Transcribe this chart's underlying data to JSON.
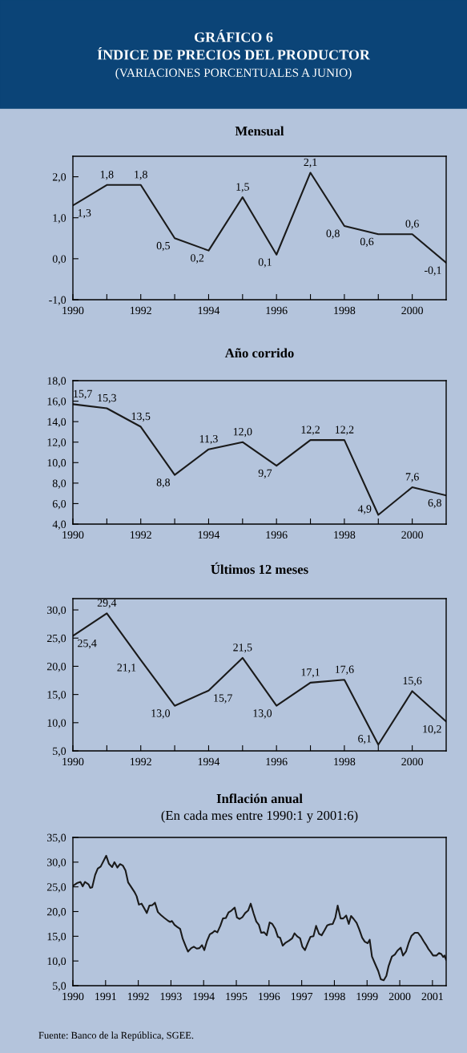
{
  "chart_data": [
    {
      "type": "line",
      "title": "Mensual",
      "annotations": [
        "GRÁFICO 6",
        "ÍNDICE DE PRECIOS DEL PRODUCTOR",
        "(VARIACIONES PORCENTUALES A JUNIO)"
      ],
      "color": "#1a1a1a",
      "x": [
        1990,
        1991,
        1992,
        1993,
        1994,
        1995,
        1996,
        1997,
        1998,
        1999,
        2000,
        2001
      ],
      "values": [
        1.3,
        1.8,
        1.8,
        0.5,
        0.2,
        1.5,
        0.1,
        2.1,
        0.8,
        0.6,
        0.6,
        -0.1
      ],
      "value_labels": [
        "1,3",
        "1,8",
        "1,8",
        "0,5",
        "0,2",
        "1,5",
        "0,1",
        "2,1",
        "0,8",
        "0,6",
        "0,6",
        "-0,1"
      ],
      "xlim": [
        1990,
        2001
      ],
      "ylim": [
        -1,
        2.5
      ],
      "xticks": [
        1990,
        {
          "value": 1991,
          "label": null
        },
        1992,
        {
          "value": 1993,
          "label": null
        },
        1994,
        {
          "value": 1995,
          "label": null
        },
        1996,
        {
          "value": 1997,
          "label": null
        },
        1998,
        {
          "value": 1999,
          "label": null
        },
        2000
      ],
      "yticks": [
        {
          "value": -1,
          "label": "-1,0"
        },
        {
          "value": 0,
          "label": "0,0"
        },
        {
          "value": 1,
          "label": "1,0"
        },
        {
          "value": 2,
          "label": "2,0"
        }
      ]
    },
    {
      "type": "line",
      "title": "Año corrido",
      "color": "#1a1a1a",
      "x": [
        1990,
        1991,
        1992,
        1993,
        1994,
        1995,
        1996,
        1997,
        1998,
        1999,
        2000,
        2001
      ],
      "values": [
        15.7,
        15.3,
        13.5,
        8.8,
        11.3,
        12.0,
        9.7,
        12.2,
        12.2,
        4.9,
        7.6,
        6.8
      ],
      "value_labels": [
        "15,7",
        "15,3",
        "13,5",
        "8,8",
        "11,3",
        "12,0",
        "9,7",
        "12,2",
        "12,2",
        "4,9",
        "7,6",
        "6,8"
      ],
      "xlim": [
        1990,
        2001
      ],
      "ylim": [
        4,
        18
      ],
      "xticks": [
        1990,
        {
          "value": 1991,
          "label": null
        },
        1992,
        {
          "value": 1993,
          "label": null
        },
        1994,
        {
          "value": 1995,
          "label": null
        },
        1996,
        {
          "value": 1997,
          "label": null
        },
        1998,
        {
          "value": 1999,
          "label": null
        },
        2000
      ],
      "yticks": [
        {
          "value": 4,
          "label": "4,0"
        },
        {
          "value": 6,
          "label": "6,0"
        },
        {
          "value": 8,
          "label": "8,0"
        },
        {
          "value": 10,
          "label": "10,0"
        },
        {
          "value": 12,
          "label": "12,0"
        },
        {
          "value": 14,
          "label": "14,0"
        },
        {
          "value": 16,
          "label": "16,0"
        },
        {
          "value": 18,
          "label": "18,0"
        }
      ]
    },
    {
      "type": "line",
      "title": "Últimos 12 meses",
      "color": "#1a1a1a",
      "x": [
        1990,
        1991,
        1992,
        1993,
        1994,
        1995,
        1996,
        1997,
        1998,
        1999,
        2000,
        2001
      ],
      "values": [
        25.4,
        29.4,
        21.1,
        13.0,
        15.7,
        21.5,
        13.0,
        17.1,
        17.6,
        6.1,
        15.6,
        10.2
      ],
      "value_labels": [
        "25,4",
        "29,4",
        "21,1",
        "13,0",
        "15,7",
        "21,5",
        "13,0",
        "17,1",
        "17,6",
        "6,1",
        "15,6",
        "10,2"
      ],
      "xlim": [
        1990,
        2001
      ],
      "ylim": [
        5,
        32
      ],
      "xticks": [
        1990,
        {
          "value": 1991,
          "label": null
        },
        1992,
        {
          "value": 1993,
          "label": null
        },
        1994,
        {
          "value": 1995,
          "label": null
        },
        1996,
        {
          "value": 1997,
          "label": null
        },
        1998,
        {
          "value": 1999,
          "label": null
        },
        2000
      ],
      "yticks": [
        {
          "value": 5,
          "label": "5,0"
        },
        {
          "value": 10,
          "label": "10,0"
        },
        {
          "value": 15,
          "label": "15,0"
        },
        {
          "value": 20,
          "label": "20,0"
        },
        {
          "value": 25,
          "label": "25,0"
        },
        {
          "value": 30,
          "label": "30,0"
        }
      ]
    },
    {
      "type": "line",
      "title": "Inflación anual",
      "subtitle": "(En cada mes entre 1990:1 y 2001:6)",
      "annotations": [
        "Fuente: Banco de la República, SGEE."
      ],
      "color": "#1a1a1a",
      "x": [
        1990.0,
        1990.14,
        1990.23,
        1990.3,
        1990.37,
        1990.48,
        1990.53,
        1990.59,
        1990.68,
        1990.76,
        1990.85,
        1991.02,
        1991.1,
        1991.2,
        1991.27,
        1991.36,
        1991.44,
        1991.53,
        1991.61,
        1991.69,
        1991.78,
        1991.88,
        1991.95,
        1992.02,
        1992.1,
        1992.18,
        1992.26,
        1992.34,
        1992.43,
        1992.51,
        1992.6,
        1992.69,
        1992.8,
        1992.92,
        1992.98,
        1993.03,
        1993.11,
        1993.19,
        1993.28,
        1993.36,
        1993.45,
        1993.52,
        1993.62,
        1993.7,
        1993.79,
        1993.87,
        1993.95,
        1994.02,
        1994.1,
        1994.19,
        1994.27,
        1994.34,
        1994.42,
        1994.51,
        1994.59,
        1994.68,
        1994.76,
        1994.85,
        1994.95,
        1995.02,
        1995.1,
        1995.19,
        1995.27,
        1995.36,
        1995.44,
        1995.53,
        1995.61,
        1995.69,
        1995.76,
        1995.85,
        1995.93,
        1996.02,
        1996.1,
        1996.19,
        1996.27,
        1996.34,
        1996.42,
        1996.51,
        1996.61,
        1996.71,
        1996.78,
        1996.86,
        1996.95,
        1997.02,
        1997.1,
        1997.19,
        1997.27,
        1997.36,
        1997.44,
        1997.53,
        1997.61,
        1997.69,
        1997.78,
        1997.86,
        1997.95,
        1998.03,
        1998.1,
        1998.19,
        1998.27,
        1998.36,
        1998.44,
        1998.51,
        1998.59,
        1998.68,
        1998.76,
        1998.85,
        1998.93,
        1999.02,
        1999.08,
        1999.15,
        1999.24,
        1999.34,
        1999.42,
        1999.51,
        1999.59,
        1999.66,
        1999.76,
        1999.85,
        1999.93,
        2000.03,
        2000.1,
        2000.19,
        2000.27,
        2000.36,
        2000.46,
        2000.56,
        2000.64,
        2000.73,
        2000.8,
        2000.88,
        2000.95,
        2001.02,
        2001.12,
        2001.2,
        2001.27,
        2001.33,
        2001.37,
        2001.42
      ],
      "values": [
        25.2,
        25.8,
        26.0,
        25.1,
        26.0,
        25.5,
        24.8,
        24.9,
        27.4,
        28.7,
        29.1,
        31.3,
        29.7,
        29.0,
        30.0,
        28.9,
        29.6,
        29.3,
        28.3,
        25.9,
        25.0,
        24.0,
        23.1,
        21.4,
        21.6,
        20.7,
        19.7,
        21.2,
        21.3,
        21.8,
        19.9,
        19.3,
        18.7,
        18.1,
        17.9,
        18.1,
        17.3,
        16.9,
        16.5,
        14.5,
        13.0,
        11.9,
        12.6,
        12.9,
        12.5,
        12.6,
        13.2,
        12.2,
        14.0,
        15.4,
        15.7,
        16.1,
        15.8,
        17.1,
        18.6,
        18.7,
        19.8,
        20.2,
        20.8,
        18.8,
        18.5,
        18.9,
        19.7,
        20.2,
        21.6,
        19.6,
        18.0,
        17.3,
        15.7,
        15.8,
        15.2,
        17.8,
        17.5,
        16.5,
        14.9,
        14.7,
        13.1,
        13.7,
        14.1,
        14.6,
        15.6,
        15.0,
        14.6,
        12.9,
        12.2,
        13.7,
        14.9,
        15.0,
        17.1,
        15.5,
        15.2,
        16.1,
        17.2,
        17.4,
        17.5,
        18.8,
        21.2,
        18.6,
        18.6,
        19.2,
        17.5,
        19.1,
        18.5,
        17.7,
        16.4,
        14.7,
        13.9,
        13.6,
        14.3,
        10.9,
        9.5,
        8.0,
        6.3,
        6.1,
        7.0,
        9.0,
        10.9,
        11.3,
        12.1,
        12.7,
        11.1,
        11.9,
        13.6,
        15.1,
        15.7,
        15.7,
        15.0,
        14.0,
        13.3,
        12.4,
        11.8,
        11.1,
        11.1,
        11.6,
        11.4,
        10.8,
        11.1,
        10.2
      ],
      "xlim": [
        1990,
        2001.42
      ],
      "ylim": [
        5,
        35
      ],
      "xticks": [
        1990,
        1991,
        1992,
        1993,
        1994,
        1995,
        1996,
        1997,
        1998,
        1999,
        2000,
        2001
      ],
      "yticks": [
        {
          "value": 5,
          "label": "5,0"
        },
        {
          "value": 10,
          "label": "10,0"
        },
        {
          "value": 15,
          "label": "15,0"
        },
        {
          "value": 20,
          "label": "20,0"
        },
        {
          "value": 25,
          "label": "25,0"
        },
        {
          "value": 30,
          "label": "30,0"
        },
        {
          "value": 35,
          "label": "35,0"
        }
      ]
    }
  ]
}
